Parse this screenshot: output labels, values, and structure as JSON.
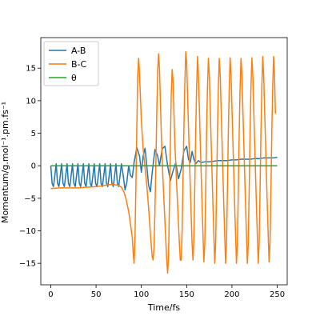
{
  "chart_data": {
    "type": "line",
    "title": "",
    "xlabel": "Time/fs",
    "ylabel": "Momentum/g.mol⁻¹.pm.fs⁻¹",
    "xlim": [
      -11,
      261
    ],
    "ylim": [
      -18.3,
      19.7
    ],
    "xticks": [
      0,
      50,
      100,
      150,
      200,
      250
    ],
    "yticks": [
      -15,
      -10,
      -5,
      0,
      5,
      10,
      15
    ],
    "grid": false,
    "legend_position": "top-left",
    "series": [
      {
        "name": "A-B",
        "color": "#1f77b4",
        "points": [
          [
            0,
            0
          ],
          [
            1.5,
            -2.7
          ],
          [
            3,
            -3.2
          ],
          [
            4.5,
            -1.5
          ],
          [
            6,
            0.3
          ],
          [
            7.5,
            -2.7
          ],
          [
            9,
            -3.2
          ],
          [
            10.5,
            -1.5
          ],
          [
            12,
            0.3
          ],
          [
            13.5,
            -2.7
          ],
          [
            15,
            -3.2
          ],
          [
            16.5,
            -1.5
          ],
          [
            18,
            0.3
          ],
          [
            19.5,
            -2.7
          ],
          [
            21,
            -3.2
          ],
          [
            22.5,
            -1.5
          ],
          [
            24,
            0.3
          ],
          [
            25.5,
            -2.7
          ],
          [
            27,
            -3.2
          ],
          [
            28.5,
            -1.5
          ],
          [
            30,
            0.3
          ],
          [
            31.5,
            -2.7
          ],
          [
            33,
            -3.2
          ],
          [
            34.5,
            -1.5
          ],
          [
            36,
            0.3
          ],
          [
            37.5,
            -2.7
          ],
          [
            39,
            -3.2
          ],
          [
            40.5,
            -1.5
          ],
          [
            42,
            0.3
          ],
          [
            43.5,
            -2.7
          ],
          [
            45,
            -3.2
          ],
          [
            46.5,
            -1.5
          ],
          [
            48,
            0.3
          ],
          [
            49.5,
            -2.7
          ],
          [
            51,
            -3.2
          ],
          [
            52.5,
            -1.5
          ],
          [
            54,
            0.3
          ],
          [
            55.5,
            -2.7
          ],
          [
            57,
            -3.2
          ],
          [
            58.5,
            -1.5
          ],
          [
            60,
            0.3
          ],
          [
            61.5,
            -2.7
          ],
          [
            63,
            -3.2
          ],
          [
            64.5,
            -1.5
          ],
          [
            66,
            0.3
          ],
          [
            67.5,
            -2.7
          ],
          [
            69,
            -3.2
          ],
          [
            70.5,
            -1.5
          ],
          [
            72,
            0.3
          ],
          [
            73.5,
            -2.7
          ],
          [
            75,
            -3.2
          ],
          [
            76.5,
            -1.5
          ],
          [
            78,
            0.3
          ],
          [
            80,
            -1.5
          ],
          [
            82,
            -3.7
          ],
          [
            84,
            -2.5
          ],
          [
            86,
            0
          ],
          [
            88,
            -1.5
          ],
          [
            90,
            -1.8
          ],
          [
            92,
            0.5
          ],
          [
            95,
            2.8
          ],
          [
            98,
            1.5
          ],
          [
            100,
            -1.0
          ],
          [
            102,
            1.5
          ],
          [
            104,
            2.7
          ],
          [
            106,
            0
          ],
          [
            108,
            -3.0
          ],
          [
            110,
            -4.0
          ],
          [
            112,
            -1.0
          ],
          [
            115,
            2.5
          ],
          [
            118,
            1.5
          ],
          [
            120,
            0
          ],
          [
            123,
            2.6
          ],
          [
            126,
            3.0
          ],
          [
            129,
            0
          ],
          [
            132,
            -2.3
          ],
          [
            135,
            -0.8
          ],
          [
            138,
            0.5
          ],
          [
            141,
            -2.0
          ],
          [
            144,
            -0.5
          ],
          [
            147,
            2.3
          ],
          [
            150,
            3.0
          ],
          [
            152,
            1.0
          ],
          [
            154,
            0.5
          ],
          [
            156,
            2.2
          ],
          [
            158,
            1.0
          ],
          [
            160,
            0.3
          ],
          [
            163,
            0.8
          ],
          [
            166,
            0.5
          ],
          [
            170,
            0.6
          ],
          [
            175,
            0.6
          ],
          [
            180,
            0.7
          ],
          [
            185,
            0.8
          ],
          [
            190,
            0.8
          ],
          [
            195,
            0.8
          ],
          [
            200,
            0.9
          ],
          [
            205,
            0.9
          ],
          [
            210,
            1.0
          ],
          [
            215,
            1.0
          ],
          [
            220,
            1.0
          ],
          [
            225,
            1.1
          ],
          [
            230,
            1.1
          ],
          [
            235,
            1.2
          ],
          [
            240,
            1.2
          ],
          [
            245,
            1.2
          ],
          [
            250,
            1.3
          ]
        ]
      },
      {
        "name": "B-C",
        "color": "#ff7f0e",
        "points": [
          [
            0,
            -3.5
          ],
          [
            10,
            -3.4
          ],
          [
            20,
            -3.4
          ],
          [
            30,
            -3.4
          ],
          [
            40,
            -3.3
          ],
          [
            50,
            -3.2
          ],
          [
            60,
            -3.0
          ],
          [
            65,
            -2.9
          ],
          [
            70,
            -2.9
          ],
          [
            75,
            -3.0
          ],
          [
            78,
            -3.3
          ],
          [
            81,
            -4.1
          ],
          [
            83,
            -5.1
          ],
          [
            86,
            -7.0
          ],
          [
            88,
            -9.0
          ],
          [
            90,
            -11.0
          ],
          [
            91,
            -13.5
          ],
          [
            92,
            -15.0
          ],
          [
            93,
            -11.0
          ],
          [
            94,
            -3.0
          ],
          [
            95,
            6.0
          ],
          [
            96,
            14.0
          ],
          [
            97,
            16.5
          ],
          [
            98,
            14.0
          ],
          [
            100,
            7.0
          ],
          [
            102,
            2.5
          ],
          [
            104,
            -0.2
          ],
          [
            106,
            -3.0
          ],
          [
            108,
            -6.5
          ],
          [
            110,
            -10.5
          ],
          [
            112,
            -14.0
          ],
          [
            113,
            -14.5
          ],
          [
            114,
            -12.5
          ],
          [
            115,
            -7.0
          ],
          [
            116,
            0
          ],
          [
            117,
            8.0
          ],
          [
            118,
            14.5
          ],
          [
            119,
            17.2
          ],
          [
            120,
            15.0
          ],
          [
            121,
            10.0
          ],
          [
            122,
            5.0
          ],
          [
            123,
            1.0
          ],
          [
            124,
            -2.5
          ],
          [
            125,
            -5.5
          ],
          [
            126,
            -8.5
          ],
          [
            127,
            -11.5
          ],
          [
            128,
            -14.5
          ],
          [
            129,
            -16.5
          ],
          [
            130,
            -14.0
          ],
          [
            131,
            -6.0
          ],
          [
            132,
            3.0
          ],
          [
            133,
            11.0
          ],
          [
            134,
            14.8
          ],
          [
            135,
            13.0
          ],
          [
            136,
            8.0
          ],
          [
            137,
            3.5
          ],
          [
            138,
            0.3
          ],
          [
            139,
            -3.0
          ],
          [
            140,
            -6.0
          ],
          [
            141,
            -9.0
          ],
          [
            142,
            -12.0
          ],
          [
            143,
            -14.5
          ],
          [
            144,
            -14.5
          ],
          [
            145,
            -10.0
          ],
          [
            146,
            -2.0
          ],
          [
            147,
            6.0
          ],
          [
            148,
            12.5
          ],
          [
            149,
            17.5
          ],
          [
            150,
            16.0
          ],
          [
            152,
            6.0
          ],
          [
            154,
            -3.0
          ],
          [
            156,
            -12.0
          ],
          [
            157,
            -14.5
          ],
          [
            158,
            -11.0
          ],
          [
            159,
            -3.0
          ],
          [
            160,
            5.0
          ],
          [
            161,
            12.0
          ],
          [
            162,
            16.8
          ],
          [
            163,
            14.0
          ],
          [
            165,
            4.0
          ],
          [
            167,
            -6.0
          ],
          [
            169,
            -14.8
          ],
          [
            170,
            -12.0
          ],
          [
            171,
            -4.0
          ],
          [
            172,
            5.0
          ],
          [
            173,
            12.0
          ],
          [
            174,
            16.5
          ],
          [
            175,
            14.0
          ],
          [
            177,
            4.0
          ],
          [
            179,
            -6.0
          ],
          [
            181,
            -15.0
          ],
          [
            182,
            -12.0
          ],
          [
            183,
            -4.0
          ],
          [
            184,
            5.0
          ],
          [
            185,
            12.0
          ],
          [
            186,
            16.5
          ],
          [
            187,
            14.0
          ],
          [
            189,
            4.0
          ],
          [
            191,
            -6.0
          ],
          [
            193,
            -15.0
          ],
          [
            194,
            -12.0
          ],
          [
            195,
            -4.0
          ],
          [
            196,
            5.0
          ],
          [
            197,
            12.0
          ],
          [
            198,
            16.6
          ],
          [
            199,
            14.0
          ],
          [
            201,
            4.0
          ],
          [
            203,
            -6.0
          ],
          [
            205,
            -15.0
          ],
          [
            206,
            -12.0
          ],
          [
            207,
            -4.0
          ],
          [
            208,
            5.0
          ],
          [
            209,
            12.0
          ],
          [
            210,
            16.5
          ],
          [
            211,
            14.0
          ],
          [
            213,
            4.0
          ],
          [
            215,
            -6.0
          ],
          [
            217,
            -15.0
          ],
          [
            218,
            -12.0
          ],
          [
            219,
            -4.0
          ],
          [
            220,
            5.0
          ],
          [
            221,
            12.0
          ],
          [
            222,
            16.6
          ],
          [
            223,
            14.0
          ],
          [
            225,
            4.0
          ],
          [
            227,
            -6.0
          ],
          [
            229,
            -15.0
          ],
          [
            230,
            -12.0
          ],
          [
            231,
            -4.0
          ],
          [
            232,
            5.0
          ],
          [
            233,
            12.0
          ],
          [
            234,
            16.8
          ],
          [
            235,
            14.0
          ],
          [
            237,
            4.0
          ],
          [
            239,
            -6.0
          ],
          [
            241,
            -14.8
          ],
          [
            242,
            -12.0
          ],
          [
            243,
            -4.0
          ],
          [
            244,
            5.0
          ],
          [
            245,
            12.0
          ],
          [
            246,
            16.8
          ],
          [
            247,
            14.0
          ],
          [
            248,
            8.0
          ]
        ]
      },
      {
        "name": "θ",
        "color": "#2ca02c",
        "points": [
          [
            0,
            0
          ],
          [
            250,
            0
          ]
        ]
      }
    ]
  }
}
